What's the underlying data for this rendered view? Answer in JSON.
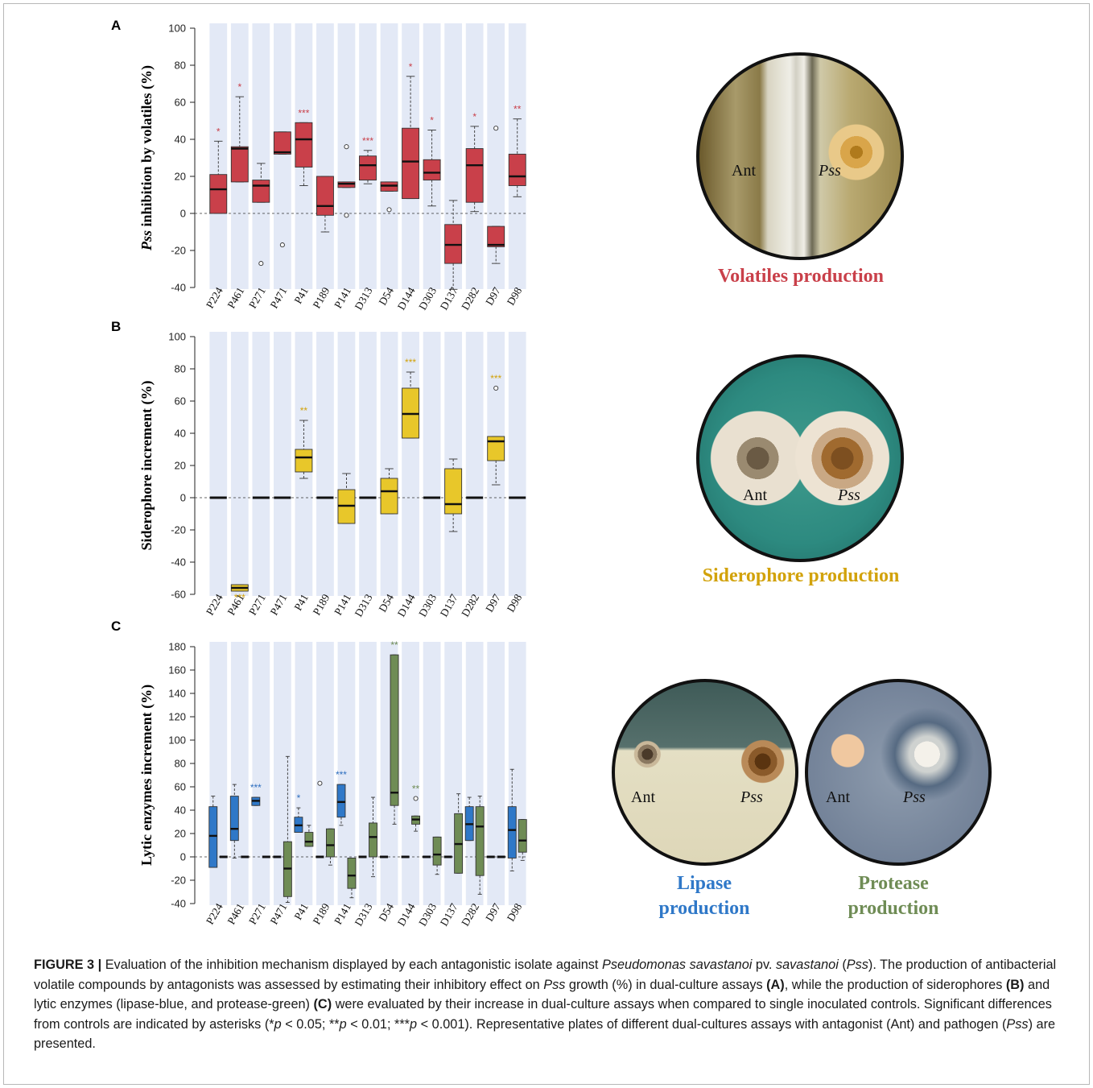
{
  "panels": {
    "a": {
      "letter": "A",
      "plate_caption": "Volatiles production",
      "plate_labels": [
        "Ant",
        "Pss"
      ]
    },
    "b": {
      "letter": "B",
      "plate_caption": "Siderophore production",
      "plate_labels": [
        "Ant",
        "Pss"
      ]
    },
    "c": {
      "letter": "C",
      "plate_captions": [
        "Lipase production",
        "Protease production"
      ],
      "lipase_caption_lines": [
        "Lipase",
        "production"
      ],
      "protease_caption_lines": [
        "Protease",
        "production"
      ],
      "plate_labels": [
        "Ant",
        "Pss"
      ]
    }
  },
  "colors": {
    "volatiles": "#c9404a",
    "siderophore": "#e8c72a",
    "lipase": "#2f78c8",
    "protease": "#6f8c55",
    "band": "#e3e9f6",
    "lipase_text": "#2f6fbf",
    "protease_text": "#6f8c55",
    "volatile_text": "#c9404a",
    "siderophore_text": "#d2a20a"
  },
  "chart_data": [
    {
      "type": "boxplot",
      "ylabel_italic": "Pss",
      "ylabel_rest": " inhibition by volatiles (%)",
      "ylim": [
        -40,
        100
      ],
      "yticks": [
        -40,
        -20,
        0,
        20,
        40,
        60,
        80,
        100
      ],
      "categories": [
        "P224",
        "P461",
        "P271",
        "P471",
        "P41",
        "P189",
        "P141",
        "D313",
        "D54",
        "D144",
        "D303",
        "D137",
        "D282",
        "D97",
        "D98"
      ],
      "series": [
        {
          "color": "#c9404a",
          "boxes": [
            {
              "min": 0,
              "q1": 0,
              "median": 13,
              "q3": 21,
              "max": 39,
              "outliers": [],
              "sig": "*"
            },
            {
              "min": 17,
              "q1": 17,
              "median": 35,
              "q3": 36,
              "max": 63,
              "outliers": [],
              "sig": "*"
            },
            {
              "min": 6,
              "q1": 6,
              "median": 15,
              "q3": 18,
              "max": 27,
              "outliers": [
                -27
              ],
              "sig": ""
            },
            {
              "min": 32,
              "q1": 32,
              "median": 33,
              "q3": 44,
              "max": 44,
              "outliers": [
                -17
              ],
              "sig": ""
            },
            {
              "min": 15,
              "q1": 25,
              "median": 40,
              "q3": 49,
              "max": 49,
              "outliers": [],
              "sig": "***"
            },
            {
              "min": -10,
              "q1": -1,
              "median": 4,
              "q3": 20,
              "max": 20,
              "outliers": [],
              "sig": ""
            },
            {
              "min": 14,
              "q1": 14,
              "median": 16,
              "q3": 17,
              "max": 17,
              "outliers": [
                36,
                -1
              ],
              "sig": ""
            },
            {
              "min": 16,
              "q1": 18,
              "median": 26,
              "q3": 31,
              "max": 34,
              "outliers": [],
              "sig": "***"
            },
            {
              "min": 12,
              "q1": 12,
              "median": 15,
              "q3": 17,
              "max": 17,
              "outliers": [
                2
              ],
              "sig": ""
            },
            {
              "min": 8,
              "q1": 8,
              "median": 28,
              "q3": 46,
              "max": 74,
              "outliers": [],
              "sig": "*"
            },
            {
              "min": 4,
              "q1": 18,
              "median": 22,
              "q3": 29,
              "max": 45,
              "outliers": [],
              "sig": "*"
            },
            {
              "min": -41,
              "q1": -27,
              "median": -17,
              "q3": -6,
              "max": 7,
              "outliers": [],
              "sig": ""
            },
            {
              "min": 1,
              "q1": 6,
              "median": 26,
              "q3": 35,
              "max": 47,
              "outliers": [],
              "sig": "*"
            },
            {
              "min": -27,
              "q1": -18,
              "median": -17,
              "q3": -7,
              "max": -7,
              "outliers": [
                46
              ],
              "sig": ""
            },
            {
              "min": 9,
              "q1": 15,
              "median": 20,
              "q3": 32,
              "max": 51,
              "outliers": [],
              "sig": "**"
            }
          ]
        }
      ]
    },
    {
      "type": "boxplot",
      "ylabel": "Siderophore increment (%)",
      "ylim": [
        -60,
        100
      ],
      "yticks": [
        -60,
        -40,
        -20,
        0,
        20,
        40,
        60,
        80,
        100
      ],
      "categories": [
        "P224",
        "P461",
        "P271",
        "P471",
        "P41",
        "P189",
        "P141",
        "D313",
        "D54",
        "D144",
        "D303",
        "D137",
        "D282",
        "D97",
        "D98"
      ],
      "series": [
        {
          "color": "#e8c72a",
          "boxes": [
            {
              "flat": true,
              "sig": ""
            },
            {
              "min": -58,
              "q1": -58,
              "median": -56,
              "q3": -54,
              "max": -54,
              "outliers": [],
              "sig": "***",
              "sig_below": true
            },
            {
              "flat": true,
              "sig": ""
            },
            {
              "flat": true,
              "sig": ""
            },
            {
              "min": 12,
              "q1": 16,
              "median": 25,
              "q3": 30,
              "max": 48,
              "outliers": [],
              "sig": "**"
            },
            {
              "flat": true,
              "sig": ""
            },
            {
              "min": -16,
              "q1": -16,
              "median": -5,
              "q3": 5,
              "max": 15,
              "outliers": [],
              "sig": ""
            },
            {
              "flat": true,
              "sig": ""
            },
            {
              "min": -10,
              "q1": -10,
              "median": 4,
              "q3": 12,
              "max": 18,
              "outliers": [],
              "sig": ""
            },
            {
              "min": 37,
              "q1": 37,
              "median": 52,
              "q3": 68,
              "max": 78,
              "outliers": [],
              "sig": "***"
            },
            {
              "flat": true,
              "sig": ""
            },
            {
              "min": -21,
              "q1": -10,
              "median": -4,
              "q3": 18,
              "max": 24,
              "outliers": [],
              "sig": ""
            },
            {
              "flat": true,
              "sig": ""
            },
            {
              "min": 8,
              "q1": 23,
              "median": 35,
              "q3": 38,
              "max": 38,
              "outliers": [
                68
              ],
              "sig": "***"
            },
            {
              "flat": true,
              "sig": ""
            }
          ]
        }
      ]
    },
    {
      "type": "boxplot",
      "ylabel": "Lytic enzymes increment (%)",
      "ylim": [
        -40,
        180
      ],
      "yticks": [
        -40,
        -20,
        0,
        20,
        40,
        60,
        80,
        100,
        120,
        140,
        160,
        180
      ],
      "categories": [
        "P224",
        "P461",
        "P271",
        "P471",
        "P41",
        "P189",
        "P141",
        "D313",
        "D54",
        "D144",
        "D303",
        "D137",
        "D282",
        "D97",
        "D98"
      ],
      "series": [
        {
          "name": "lipase",
          "color": "#2f78c8",
          "boxes": [
            {
              "min": -9,
              "q1": -9,
              "median": 18,
              "q3": 43,
              "max": 52,
              "outliers": [],
              "sig": ""
            },
            {
              "min": -1,
              "q1": 14,
              "median": 24,
              "q3": 52,
              "max": 62,
              "outliers": [],
              "sig": ""
            },
            {
              "min": 44,
              "q1": 44,
              "median": 48,
              "q3": 51,
              "max": 51,
              "outliers": [],
              "sig": "***"
            },
            {
              "flat": true,
              "sig": ""
            },
            {
              "min": 21,
              "q1": 21,
              "median": 27,
              "q3": 34,
              "max": 42,
              "outliers": [],
              "sig": "*"
            },
            {
              "flat": true,
              "outliers": [
                63
              ],
              "sig": ""
            },
            {
              "min": 27,
              "q1": 34,
              "median": 47,
              "q3": 62,
              "max": 62,
              "outliers": [],
              "sig": "***"
            },
            {
              "flat": true,
              "sig": ""
            },
            {
              "flat": true,
              "sig": ""
            },
            {
              "flat": true,
              "sig": ""
            },
            {
              "flat": true,
              "sig": ""
            },
            {
              "flat": true,
              "sig": ""
            },
            {
              "min": 14,
              "q1": 14,
              "median": 28,
              "q3": 43,
              "max": 51,
              "outliers": [],
              "sig": ""
            },
            {
              "flat": true,
              "sig": ""
            },
            {
              "min": -12,
              "q1": -1,
              "median": 23,
              "q3": 43,
              "max": 75,
              "outliers": [],
              "sig": ""
            }
          ]
        },
        {
          "name": "protease",
          "color": "#6f8c55",
          "boxes": [
            {
              "flat": true,
              "sig": ""
            },
            {
              "flat": true,
              "sig": ""
            },
            {
              "flat": true,
              "sig": ""
            },
            {
              "min": -39,
              "q1": -34,
              "median": -10,
              "q3": 13,
              "max": 86,
              "outliers": [],
              "sig": ""
            },
            {
              "min": 9,
              "q1": 9,
              "median": 13,
              "q3": 21,
              "max": 27,
              "outliers": [],
              "sig": ""
            },
            {
              "min": -7,
              "q1": 0,
              "median": 10,
              "q3": 24,
              "max": 24,
              "outliers": [],
              "sig": ""
            },
            {
              "min": -35,
              "q1": -27,
              "median": -16,
              "q3": -1,
              "max": -1,
              "outliers": [],
              "sig": ""
            },
            {
              "min": -17,
              "q1": 0,
              "median": 17,
              "q3": 29,
              "max": 51,
              "outliers": [],
              "sig": ""
            },
            {
              "min": 28,
              "q1": 44,
              "median": 55,
              "q3": 173,
              "max": 173,
              "outliers": [],
              "sig": "**"
            },
            {
              "min": 22,
              "q1": 28,
              "median": 32,
              "q3": 35,
              "max": 35,
              "outliers": [
                50
              ],
              "sig": "**"
            },
            {
              "min": -15,
              "q1": -7,
              "median": 2,
              "q3": 17,
              "max": 17,
              "outliers": [],
              "sig": ""
            },
            {
              "min": -14,
              "q1": -14,
              "median": 11,
              "q3": 37,
              "max": 54,
              "outliers": [],
              "sig": ""
            },
            {
              "min": -32,
              "q1": -16,
              "median": 26,
              "q3": 43,
              "max": 52,
              "outliers": [],
              "sig": ""
            },
            {
              "flat": true,
              "sig": ""
            },
            {
              "min": -3,
              "q1": 4,
              "median": 14,
              "q3": 32,
              "max": 32,
              "outliers": [],
              "sig": ""
            }
          ]
        }
      ]
    }
  ],
  "caption": {
    "figure_label": "FIGURE 3 |",
    "t1": " Evaluation of the inhibition mechanism displayed by each antagonistic isolate against ",
    "t1i": "Pseudomonas savastanoi",
    "t2": " pv. ",
    "t2i": "savastanoi",
    "t3": " (",
    "t3i": "Pss",
    "t4": "). The production of antibacterial volatile compounds by antagonists was assessed by estimating their inhibitory effect on ",
    "t4i": "Pss",
    "t5": " growth (%) in dual-culture assays ",
    "ta": "(A)",
    "t6": ", while the production of siderophores ",
    "tb": "(B)",
    "t7": " and lytic enzymes (lipase-blue, and protease-green) ",
    "tc": "(C)",
    "t8": " were evaluated by their increase in dual-culture assays when compared to single inoculated controls. Significant differences from controls are indicated by asterisks (*",
    "p1": "p",
    "t9": " < 0.05; **",
    "p2": "p",
    "t10": " < 0.01; ***",
    "p3": "p",
    "t11": " < 0.001). Representative plates of different dual-cultures assays with antagonist (Ant) and pathogen (",
    "t11i": "Pss",
    "t12": ") are presented."
  }
}
